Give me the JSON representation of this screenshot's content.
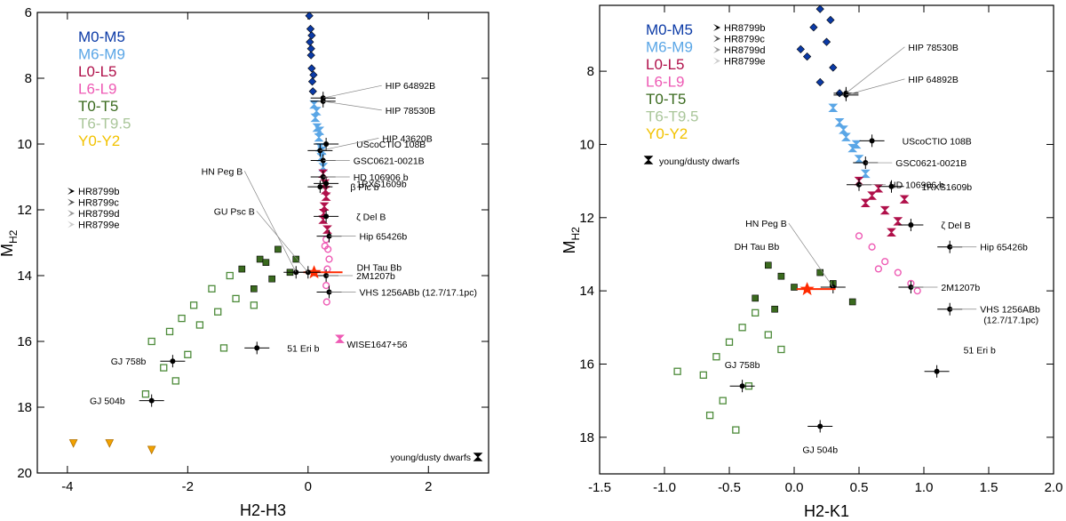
{
  "chart_data": [
    {
      "type": "scatter",
      "title": "",
      "xlabel": "H2-H3",
      "ylabel": "M",
      "ylabel_sub": "H2",
      "xlim": [
        -4.5,
        3.0
      ],
      "ylim": [
        20,
        6
      ],
      "xticks": [
        -4,
        -2,
        0,
        2
      ],
      "yticks": [
        6,
        8,
        10,
        12,
        14,
        16,
        18,
        20
      ],
      "legend_spectral": [
        {
          "label": "M0-M5",
          "color": "#0b3aa6"
        },
        {
          "label": "M6-M9",
          "color": "#5aa6e6"
        },
        {
          "label": "L0-L5",
          "color": "#b0104a"
        },
        {
          "label": "L6-L9",
          "color": "#ee5ab4"
        },
        {
          "label": "T0-T5",
          "color": "#3a6a1e"
        },
        {
          "label": "T6-T9.5",
          "color": "#aac69a"
        },
        {
          "label": "Y0-Y2",
          "color": "#f2c200"
        }
      ],
      "legend_hr": [
        "HR8799b",
        "HR8799c",
        "HR8799d",
        "HR8799e"
      ],
      "young_label": "young/dusty dwarfs",
      "series": [
        {
          "name": "M0-M5",
          "marker": "diamond",
          "color": "#0b3aa6",
          "points": [
            [
              0.02,
              6.1
            ],
            [
              0.04,
              6.5
            ],
            [
              0.03,
              6.9
            ],
            [
              0.05,
              7.3
            ],
            [
              0.06,
              7.7
            ],
            [
              0.07,
              8.1
            ],
            [
              0.08,
              8.4
            ],
            [
              0.06,
              6.7
            ],
            [
              0.09,
              7.9
            ],
            [
              0.05,
              7.1
            ]
          ]
        },
        {
          "name": "M6-M9",
          "marker": "bowtie",
          "color": "#5aa6e6",
          "points": [
            [
              0.1,
              8.8
            ],
            [
              0.12,
              9.2
            ],
            [
              0.15,
              9.5
            ],
            [
              0.18,
              9.8
            ],
            [
              0.2,
              10.1
            ],
            [
              0.22,
              10.4
            ],
            [
              0.25,
              10.7
            ],
            [
              0.14,
              9.0
            ],
            [
              0.19,
              9.6
            ],
            [
              0.23,
              10.2
            ]
          ]
        },
        {
          "name": "L0-L5",
          "marker": "bowtie",
          "color": "#b0104a",
          "points": [
            [
              0.25,
              10.9
            ],
            [
              0.28,
              11.2
            ],
            [
              0.3,
              11.6
            ],
            [
              0.27,
              11.9
            ],
            [
              0.25,
              12.3
            ],
            [
              0.32,
              12.6
            ],
            [
              0.29,
              11.4
            ],
            [
              0.26,
              12.1
            ]
          ]
        },
        {
          "name": "L6-L9",
          "marker": "circle",
          "color": "#ee5ab4",
          "points": [
            [
              0.3,
              12.9
            ],
            [
              0.33,
              13.2
            ],
            [
              0.35,
              13.5
            ],
            [
              0.32,
              13.8
            ],
            [
              0.28,
              13.1
            ],
            [
              0.3,
              14.3
            ],
            [
              0.31,
              14.8
            ]
          ]
        },
        {
          "name": "T0-T5",
          "marker": "square",
          "color": "#3a6a1e",
          "points": [
            [
              -0.5,
              13.2
            ],
            [
              -0.8,
              13.5
            ],
            [
              -1.1,
              13.8
            ],
            [
              -0.6,
              14.1
            ],
            [
              -0.3,
              13.9
            ],
            [
              -0.9,
              14.4
            ],
            [
              -0.7,
              13.6
            ],
            [
              -0.2,
              13.5
            ]
          ]
        },
        {
          "name": "T6-T9.5",
          "marker": "square-open",
          "color": "#4d8b3a",
          "points": [
            [
              -1.3,
              14.0
            ],
            [
              -1.6,
              14.4
            ],
            [
              -1.9,
              14.9
            ],
            [
              -2.1,
              15.3
            ],
            [
              -2.3,
              15.7
            ],
            [
              -1.5,
              15.1
            ],
            [
              -1.2,
              14.7
            ],
            [
              -2.6,
              16.0
            ],
            [
              -2.0,
              16.4
            ],
            [
              -2.4,
              16.8
            ],
            [
              -1.8,
              15.5
            ],
            [
              -2.2,
              17.2
            ],
            [
              -2.7,
              17.6
            ],
            [
              -1.4,
              16.2
            ],
            [
              -0.9,
              14.9
            ]
          ]
        },
        {
          "name": "Y0-Y2",
          "marker": "triangle-down",
          "color": "#f2a200",
          "points": [
            [
              -3.9,
              19.1
            ],
            [
              -3.3,
              19.1
            ],
            [
              -2.6,
              19.3
            ]
          ]
        }
      ],
      "labeled_objects": [
        {
          "name": "HIP 64892B",
          "x": 0.25,
          "y": 8.6
        },
        {
          "name": "HIP 78530B",
          "x": 0.25,
          "y": 8.7
        },
        {
          "name": "UScoCTIO 108B",
          "x": 0.3,
          "y": 10.0
        },
        {
          "name": "HIP 43620B",
          "x": 0.2,
          "y": 10.2
        },
        {
          "name": "GSC0621-0021B",
          "x": 0.25,
          "y": 10.5
        },
        {
          "name": "HD 106906 b",
          "x": 0.25,
          "y": 11.0
        },
        {
          "name": "1RXS1609b",
          "x": 0.3,
          "y": 11.2
        },
        {
          "name": "β Pic b",
          "x": 0.2,
          "y": 11.3
        },
        {
          "name": "ζ Del B",
          "x": 0.3,
          "y": 12.2
        },
        {
          "name": "Hip 65426b",
          "x": 0.35,
          "y": 12.8
        },
        {
          "name": "2M1207b",
          "x": 0.3,
          "y": 14.0
        },
        {
          "name": "DH Tau Bb",
          "x": 0.1,
          "y": 13.9
        },
        {
          "name": "VHS 1256ABb (12.7/17.1pc)",
          "x": 0.35,
          "y": 14.5
        },
        {
          "name": "WISE1647+56",
          "x": 0.35,
          "y": 15.6
        },
        {
          "name": "HN Peg B",
          "x": -0.2,
          "y": 13.9
        },
        {
          "name": "GU Psc B",
          "x": 0.0,
          "y": 13.9
        },
        {
          "name": "51 Eri b",
          "x": -0.85,
          "y": 16.2
        },
        {
          "name": "GJ 758b",
          "x": -2.25,
          "y": 16.6
        },
        {
          "name": "GJ 504b",
          "x": -2.6,
          "y": 17.8
        }
      ]
    },
    {
      "type": "scatter",
      "title": "",
      "xlabel": "H2-K1",
      "ylabel": "M",
      "ylabel_sub": "H2",
      "xlim": [
        -1.5,
        2.0
      ],
      "ylim": [
        19,
        6.2
      ],
      "xticks": [
        -1.5,
        -1.0,
        -0.5,
        0.0,
        0.5,
        1.0,
        1.5,
        2.0
      ],
      "yticks": [
        8,
        10,
        12,
        14,
        16,
        18
      ],
      "legend_spectral": [
        {
          "label": "M0-M5",
          "color": "#0b3aa6"
        },
        {
          "label": "M6-M9",
          "color": "#5aa6e6"
        },
        {
          "label": "L0-L5",
          "color": "#b0104a"
        },
        {
          "label": "L6-L9",
          "color": "#ee5ab4"
        },
        {
          "label": "T0-T5",
          "color": "#3a6a1e"
        },
        {
          "label": "T6-T9.5",
          "color": "#aac69a"
        },
        {
          "label": "Y0-Y2",
          "color": "#f2c200"
        }
      ],
      "legend_hr": [
        "HR8799b",
        "HR8799c",
        "HR8799d",
        "HR8799e"
      ],
      "young_label": "young/dusty dwarfs",
      "series": [
        {
          "name": "M0-M5",
          "marker": "diamond",
          "color": "#0b3aa6",
          "points": [
            [
              0.2,
              6.3
            ],
            [
              0.15,
              6.8
            ],
            [
              0.25,
              7.2
            ],
            [
              0.1,
              7.6
            ],
            [
              0.3,
              7.9
            ],
            [
              0.2,
              8.3
            ],
            [
              0.35,
              8.6
            ],
            [
              0.05,
              7.4
            ],
            [
              0.28,
              6.6
            ]
          ]
        },
        {
          "name": "M6-M9",
          "marker": "bowtie",
          "color": "#5aa6e6",
          "points": [
            [
              0.3,
              9.0
            ],
            [
              0.35,
              9.4
            ],
            [
              0.4,
              9.8
            ],
            [
              0.45,
              10.1
            ],
            [
              0.5,
              10.4
            ],
            [
              0.55,
              10.8
            ],
            [
              0.38,
              9.6
            ],
            [
              0.48,
              10.0
            ]
          ]
        },
        {
          "name": "L0-L5",
          "marker": "bowtie",
          "color": "#b0104a",
          "points": [
            [
              0.5,
              11.0
            ],
            [
              0.6,
              11.4
            ],
            [
              0.7,
              11.8
            ],
            [
              0.8,
              12.1
            ],
            [
              0.65,
              11.2
            ],
            [
              0.55,
              11.6
            ],
            [
              0.85,
              11.5
            ],
            [
              0.75,
              12.4
            ]
          ]
        },
        {
          "name": "L6-L9",
          "marker": "circle",
          "color": "#ee5ab4",
          "points": [
            [
              0.6,
              12.8
            ],
            [
              0.7,
              13.2
            ],
            [
              0.8,
              13.5
            ],
            [
              0.9,
              13.8
            ],
            [
              0.5,
              12.5
            ],
            [
              0.65,
              13.4
            ],
            [
              0.95,
              14.0
            ]
          ]
        },
        {
          "name": "T0-T5",
          "marker": "square",
          "color": "#3a6a1e",
          "points": [
            [
              -0.2,
              13.3
            ],
            [
              -0.1,
              13.6
            ],
            [
              0.0,
              13.9
            ],
            [
              -0.3,
              14.2
            ],
            [
              0.2,
              13.5
            ],
            [
              0.3,
              13.8
            ],
            [
              -0.15,
              14.5
            ],
            [
              0.45,
              14.3
            ]
          ]
        },
        {
          "name": "T6-T9.5",
          "marker": "square-open",
          "color": "#4d8b3a",
          "points": [
            [
              -0.3,
              14.6
            ],
            [
              -0.4,
              15.0
            ],
            [
              -0.5,
              15.4
            ],
            [
              -0.6,
              15.8
            ],
            [
              -0.2,
              15.2
            ],
            [
              -0.7,
              16.3
            ],
            [
              -0.9,
              16.2
            ],
            [
              -0.55,
              17.0
            ],
            [
              -0.65,
              17.4
            ],
            [
              -0.45,
              17.8
            ],
            [
              -0.1,
              15.6
            ],
            [
              -0.35,
              16.6
            ]
          ]
        }
      ],
      "labeled_objects": [
        {
          "name": "HIP 78530B",
          "x": 0.4,
          "y": 8.6
        },
        {
          "name": "HIP 64892B",
          "x": 0.4,
          "y": 8.65
        },
        {
          "name": "UScoCTIO 108B",
          "x": 0.6,
          "y": 9.9
        },
        {
          "name": "GSC0621-0021B",
          "x": 0.55,
          "y": 10.5
        },
        {
          "name": "HD 106906 b",
          "x": 0.5,
          "y": 11.1
        },
        {
          "name": "1RXS1609b",
          "x": 0.75,
          "y": 11.15
        },
        {
          "name": "ζ Del B",
          "x": 0.9,
          "y": 12.2
        },
        {
          "name": "Hip 65426b",
          "x": 1.2,
          "y": 12.8
        },
        {
          "name": "2M1207b",
          "x": 0.9,
          "y": 13.9
        },
        {
          "name": "HN Peg B",
          "x": 0.3,
          "y": 13.9
        },
        {
          "name": "DH Tau Bb",
          "x": 0.1,
          "y": 13.95
        },
        {
          "name": "VHS 1256ABb (12.7/17.1pc)",
          "x": 1.2,
          "y": 14.5
        },
        {
          "name": "51 Eri b",
          "x": 1.1,
          "y": 16.2
        },
        {
          "name": "GJ 758b",
          "x": -0.4,
          "y": 16.6
        },
        {
          "name": "GJ 504b",
          "x": 0.2,
          "y": 17.7
        }
      ]
    }
  ]
}
